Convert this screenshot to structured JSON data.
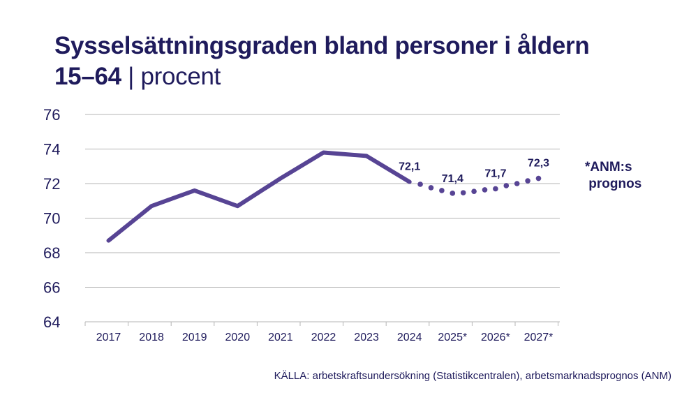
{
  "title": {
    "main": "Sysselsättningsgraden bland personer i åldern",
    "line2_bold": "15–64",
    "line2_rest": " | procent"
  },
  "note": "*ANM:s\n prognos",
  "source": "KÄLLA: arbetskraftsundersökning (Statistikcentralen), arbetsmarknadsprognos (ANM)",
  "colors": {
    "line": "#574494",
    "text": "#1f1b5c",
    "grid": "#b4b4b4"
  },
  "chart_data": {
    "type": "line",
    "categories": [
      "2017",
      "2018",
      "2019",
      "2020",
      "2021",
      "2022",
      "2023",
      "2024",
      "2025*",
      "2026*",
      "2027*"
    ],
    "ylim": [
      64,
      76
    ],
    "yticks": [
      64,
      66,
      68,
      70,
      72,
      74,
      76
    ],
    "grid": true,
    "series": [
      {
        "style": "solid",
        "x": [
          2017,
          2018,
          2019,
          2020,
          2021,
          2022,
          2023,
          2024
        ],
        "values": [
          68.7,
          70.7,
          71.6,
          70.7,
          72.3,
          73.8,
          73.6,
          72.1
        ]
      },
      {
        "style": "dotted",
        "x": [
          2024.25,
          2024.5,
          2024.75,
          2025,
          2025.25,
          2025.5,
          2025.75,
          2026,
          2026.25,
          2026.5,
          2026.75,
          2027
        ],
        "values": [
          71.96,
          71.76,
          71.6,
          71.44,
          71.47,
          71.55,
          71.64,
          71.7,
          71.88,
          72.0,
          72.16,
          72.3
        ]
      }
    ],
    "data_labels": [
      {
        "x": 2024,
        "value": 72.1,
        "text": "72,1"
      },
      {
        "x": 2025,
        "value": 71.4,
        "text": "71,4"
      },
      {
        "x": 2026,
        "value": 71.7,
        "text": "71,7"
      },
      {
        "x": 2027,
        "value": 72.3,
        "text": "72,3"
      }
    ]
  }
}
